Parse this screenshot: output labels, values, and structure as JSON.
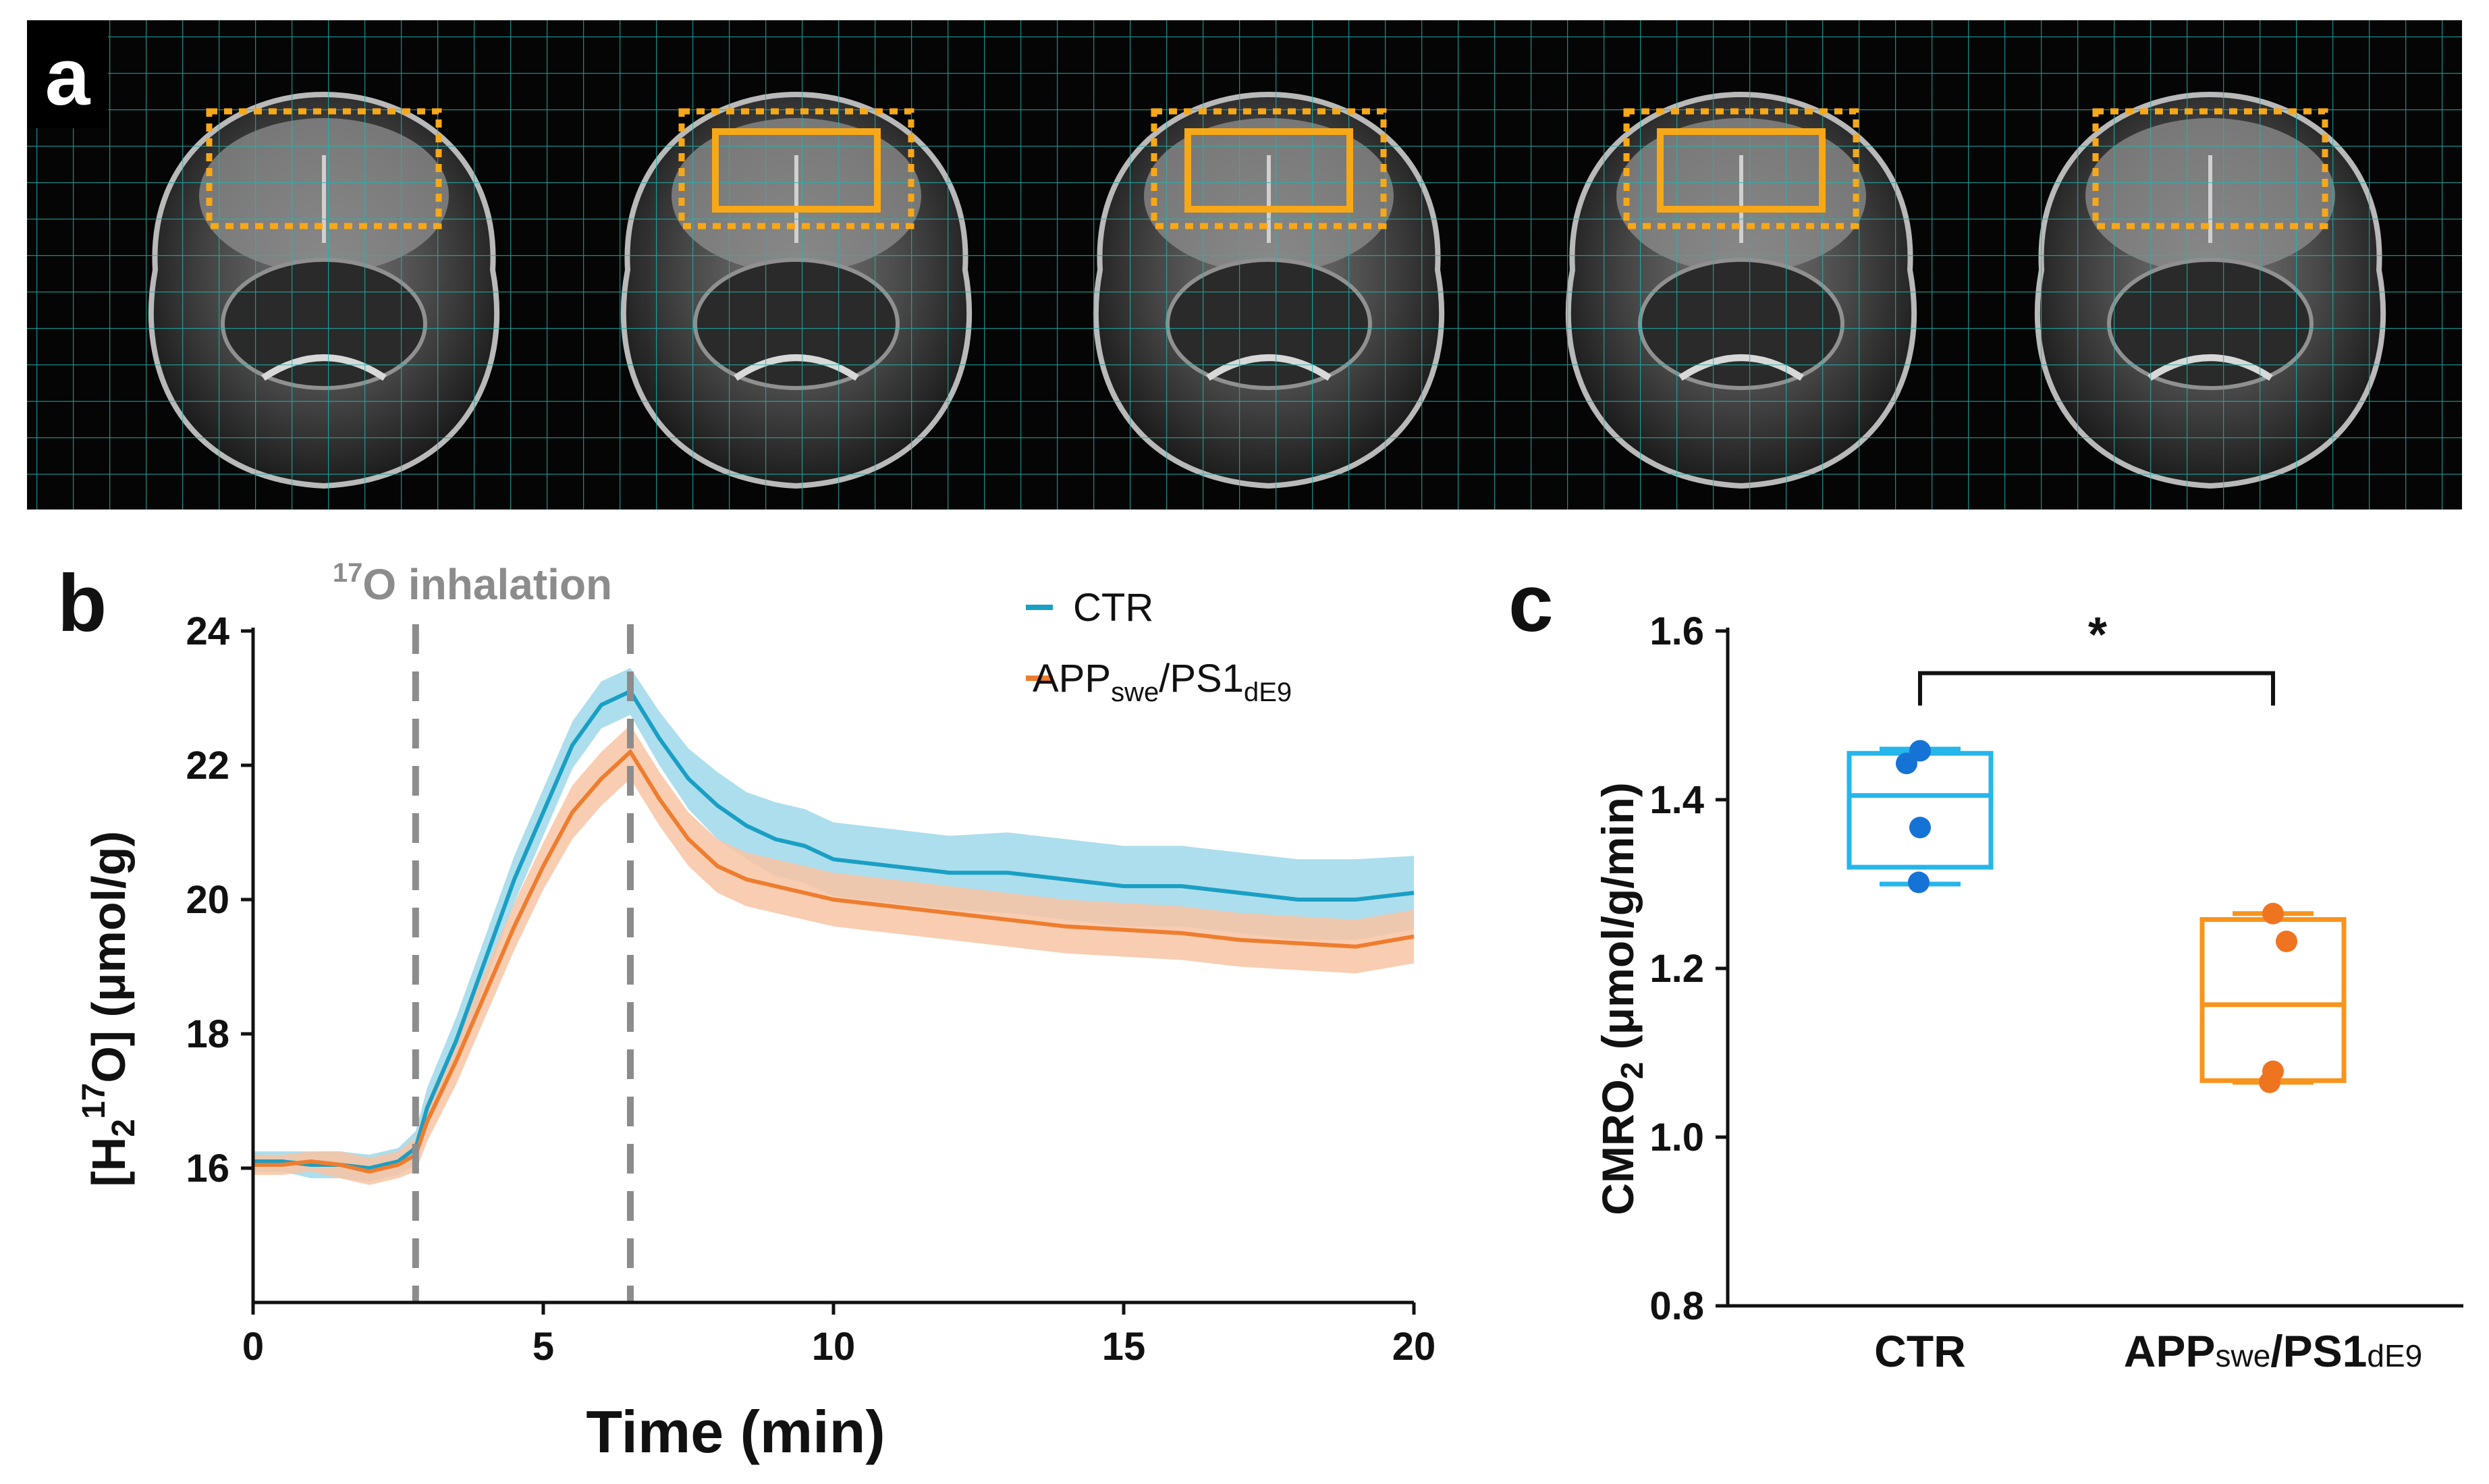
{
  "panels": {
    "a": "a",
    "b": "b",
    "c": "c"
  },
  "panel_a": {
    "type": "image-strip",
    "slice_count": 5,
    "roi_dotted": [
      true,
      true,
      true,
      true,
      true
    ],
    "roi_solid": [
      false,
      true,
      true,
      true,
      false
    ],
    "grid_color": "#1fb7b0",
    "roi_color": "#f7a818"
  },
  "colors": {
    "ctr": "#1a9fc4",
    "ctr_band": "#9fd8ea",
    "app": "#ee7d2f",
    "app_band": "#f8c4a3",
    "box_ctr": "#26b6ea",
    "box_app": "#f8941d",
    "dot_ctr": "#1673d6",
    "dot_app": "#ef7420",
    "dash": "#8c8c8c"
  },
  "chart_data": [
    {
      "panel": "b",
      "type": "line",
      "annotation": {
        "sup": "17",
        "text": "O inhalation"
      },
      "xlabel": "Time (min)",
      "ylabel": {
        "p1": "[H",
        "sub": "2",
        "sup": "17",
        "p2": "O] (μmol/g)"
      },
      "xlim": [
        0,
        20
      ],
      "ylim": [
        14,
        24
      ],
      "xticks": [
        "0",
        "5",
        "10",
        "15",
        "20"
      ],
      "yticks": [
        "16",
        "18",
        "20",
        "22",
        "24"
      ],
      "vlines": [
        2.8,
        6.5
      ],
      "legend": [
        {
          "label": "CTR"
        },
        {
          "label": "APP",
          "sub1": "swe",
          "mid": "/PS1",
          "sub2": "dE9"
        }
      ],
      "x": [
        0,
        0.5,
        1,
        1.5,
        2,
        2.5,
        2.8,
        3,
        3.5,
        4,
        4.5,
        5,
        5.5,
        6,
        6.5,
        7,
        7.5,
        8,
        8.5,
        9,
        9.5,
        10,
        11,
        12,
        13,
        14,
        15,
        16,
        17,
        18,
        19,
        20
      ],
      "series": [
        {
          "name": "CTR",
          "values": [
            16.1,
            16.1,
            16.05,
            16.05,
            16.0,
            16.1,
            16.3,
            16.9,
            17.9,
            19.1,
            20.3,
            21.3,
            22.3,
            22.9,
            23.1,
            22.4,
            21.8,
            21.4,
            21.1,
            20.9,
            20.8,
            20.6,
            20.5,
            20.4,
            20.4,
            20.3,
            20.2,
            20.2,
            20.1,
            20.0,
            20.0,
            20.1
          ],
          "band": [
            0.15,
            0.15,
            0.2,
            0.2,
            0.2,
            0.2,
            0.25,
            0.3,
            0.35,
            0.35,
            0.35,
            0.35,
            0.35,
            0.35,
            0.35,
            0.4,
            0.45,
            0.5,
            0.5,
            0.55,
            0.55,
            0.55,
            0.55,
            0.55,
            0.6,
            0.6,
            0.6,
            0.6,
            0.6,
            0.6,
            0.6,
            0.55
          ]
        },
        {
          "name": "APP/PS1",
          "values": [
            16.05,
            16.05,
            16.1,
            16.05,
            15.95,
            16.05,
            16.2,
            16.7,
            17.6,
            18.6,
            19.6,
            20.5,
            21.3,
            21.8,
            22.2,
            21.5,
            20.9,
            20.5,
            20.3,
            20.2,
            20.1,
            20.0,
            19.9,
            19.8,
            19.7,
            19.6,
            19.55,
            19.5,
            19.4,
            19.35,
            19.3,
            19.45
          ]
        },
        {
          "name": "APP band",
          "values": [
            0.15,
            0.15,
            0.15,
            0.2,
            0.2,
            0.2,
            0.25,
            0.3,
            0.35,
            0.35,
            0.35,
            0.35,
            0.4,
            0.4,
            0.4,
            0.4,
            0.4,
            0.4,
            0.4,
            0.4,
            0.4,
            0.4,
            0.4,
            0.4,
            0.4,
            0.4,
            0.4,
            0.4,
            0.4,
            0.4,
            0.4,
            0.4
          ]
        }
      ]
    },
    {
      "panel": "c",
      "type": "box",
      "title": "*",
      "ylabel": {
        "p1": "CMRO",
        "sub": "2",
        "p2": " (μmol/g/min)"
      },
      "ylim": [
        0.8,
        1.6
      ],
      "yticks": [
        "0.8",
        "1.0",
        "1.2",
        "1.4",
        "1.6"
      ],
      "categories": [
        {
          "label": "CTR"
        },
        {
          "label": "APP",
          "sub1": "swe",
          "mid": "/PS1",
          "sub2": "dE9"
        }
      ],
      "boxes": [
        {
          "min": 1.3,
          "q1": 1.32,
          "median": 1.405,
          "q3": 1.455,
          "max": 1.46,
          "points": [
            1.458,
            1.443,
            1.367,
            1.302
          ]
        },
        {
          "min": 1.065,
          "q1": 1.067,
          "median": 1.157,
          "q3": 1.258,
          "max": 1.265,
          "points": [
            1.265,
            1.232,
            1.078,
            1.065
          ]
        }
      ]
    }
  ]
}
